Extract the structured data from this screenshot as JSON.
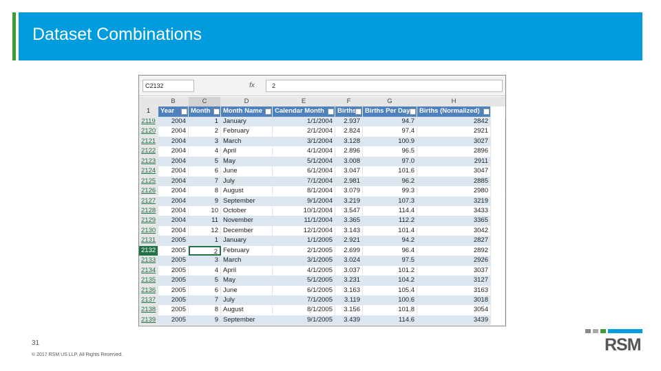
{
  "header": {
    "title": "Dataset Combinations"
  },
  "spreadsheet": {
    "name_box": "C2132",
    "function_label": "fx",
    "formula": "2",
    "column_letters": [
      "B",
      "C",
      "D",
      "E",
      "F",
      "G",
      "H"
    ],
    "header_row_number": "1",
    "headers": [
      "Year",
      "Month",
      "Month Name",
      "Calendar Month",
      "Births",
      "Births Per Day",
      "Births (Normalized)"
    ],
    "rows": [
      {
        "row_number": "2119",
        "cells": [
          "2004",
          "1",
          "January",
          "1/1/2004",
          "2.937",
          "94.7",
          "2842"
        ]
      },
      {
        "row_number": "2120",
        "cells": [
          "2004",
          "2",
          "February",
          "2/1/2004",
          "2.824",
          "97.4",
          "2921"
        ]
      },
      {
        "row_number": "2121",
        "cells": [
          "2004",
          "3",
          "March",
          "3/1/2004",
          "3.128",
          "100.9",
          "3027"
        ]
      },
      {
        "row_number": "2122",
        "cells": [
          "2004",
          "4",
          "April",
          "4/1/2004",
          "2.896",
          "96.5",
          "2896"
        ]
      },
      {
        "row_number": "2123",
        "cells": [
          "2004",
          "5",
          "May",
          "5/1/2004",
          "3.008",
          "97.0",
          "2911"
        ]
      },
      {
        "row_number": "2124",
        "cells": [
          "2004",
          "6",
          "June",
          "6/1/2004",
          "3.047",
          "101.6",
          "3047"
        ]
      },
      {
        "row_number": "2125",
        "cells": [
          "2004",
          "7",
          "July",
          "7/1/2004",
          "2.981",
          "96.2",
          "2885"
        ]
      },
      {
        "row_number": "2126",
        "cells": [
          "2004",
          "8",
          "August",
          "8/1/2004",
          "3.079",
          "99.3",
          "2980"
        ]
      },
      {
        "row_number": "2127",
        "cells": [
          "2004",
          "9",
          "September",
          "9/1/2004",
          "3.219",
          "107.3",
          "3219"
        ]
      },
      {
        "row_number": "2128",
        "cells": [
          "2004",
          "10",
          "October",
          "10/1/2004",
          "3.547",
          "114.4",
          "3433"
        ]
      },
      {
        "row_number": "2129",
        "cells": [
          "2004",
          "11",
          "November",
          "11/1/2004",
          "3.365",
          "112.2",
          "3365"
        ]
      },
      {
        "row_number": "2130",
        "cells": [
          "2004",
          "12",
          "December",
          "12/1/2004",
          "3.143",
          "101.4",
          "3042"
        ]
      },
      {
        "row_number": "2131",
        "cells": [
          "2005",
          "1",
          "January",
          "1/1/2005",
          "2.921",
          "94.2",
          "2827"
        ]
      },
      {
        "row_number": "2132",
        "cells": [
          "2005",
          "2",
          "February",
          "2/1/2005",
          "2.699",
          "96.4",
          "2892"
        ]
      },
      {
        "row_number": "2133",
        "cells": [
          "2005",
          "3",
          "March",
          "3/1/2005",
          "3.024",
          "97.5",
          "2926"
        ]
      },
      {
        "row_number": "2134",
        "cells": [
          "2005",
          "4",
          "April",
          "4/1/2005",
          "3.037",
          "101.2",
          "3037"
        ]
      },
      {
        "row_number": "2135",
        "cells": [
          "2005",
          "5",
          "May",
          "5/1/2005",
          "3.231",
          "104.2",
          "3127"
        ]
      },
      {
        "row_number": "2136",
        "cells": [
          "2005",
          "6",
          "June",
          "6/1/2005",
          "3.163",
          "105.4",
          "3163"
        ]
      },
      {
        "row_number": "2137",
        "cells": [
          "2005",
          "7",
          "July",
          "7/1/2005",
          "3.119",
          "100.6",
          "3018"
        ]
      },
      {
        "row_number": "2138",
        "cells": [
          "2005",
          "8",
          "August",
          "8/1/2005",
          "3.156",
          "101.8",
          "3054"
        ]
      },
      {
        "row_number": "2139",
        "cells": [
          "2005",
          "9",
          "September",
          "9/1/2005",
          "3.439",
          "114.6",
          "3439"
        ]
      }
    ]
  },
  "footer": {
    "page_number": "31",
    "copyright": "© 2017 RSM US LLP. All Rights Reserved.",
    "logo": "RSM"
  }
}
